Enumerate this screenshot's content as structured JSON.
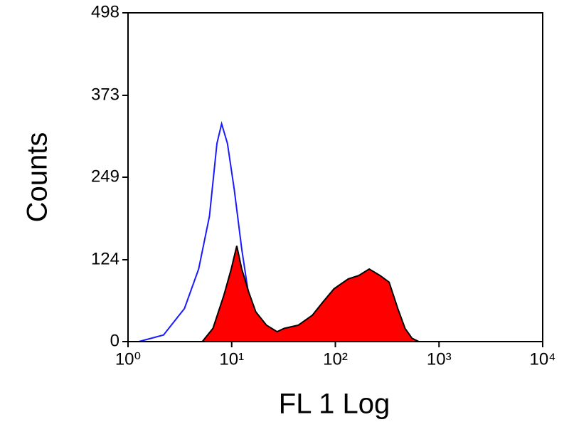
{
  "chart_data": {
    "type": "histogram-overlay",
    "xlabel": "FL 1 Log",
    "ylabel": "Counts",
    "xscale": "log",
    "xlim": [
      1,
      10000
    ],
    "ylim": [
      0,
      498
    ],
    "xticks": [
      {
        "value": 1,
        "label": "10⁰"
      },
      {
        "value": 10,
        "label": "10¹"
      },
      {
        "value": 100,
        "label": "10²"
      },
      {
        "value": 1000,
        "label": "10³"
      },
      {
        "value": 10000,
        "label": "10⁴"
      }
    ],
    "yticks": [
      0,
      124,
      249,
      373,
      498
    ],
    "series": [
      {
        "color": "#1a1aff",
        "x": [
          1.27,
          2.2,
          3.5,
          4.8,
          6.1,
          7.2,
          8.0,
          9.1,
          10.6,
          12.5,
          14.6,
          17,
          21.6,
          25
        ],
        "values": [
          0,
          10,
          50,
          110,
          190,
          300,
          330,
          300,
          230,
          140,
          70,
          25,
          5,
          0
        ]
      },
      {
        "color": "#000000",
        "fill": "#ff0000",
        "x": [
          5.2,
          6.6,
          8.4,
          9.9,
          11.2,
          12.5,
          14.6,
          17.1,
          21.6,
          27.4,
          32,
          44,
          60,
          76,
          97,
          133,
          168,
          212,
          270,
          330,
          400,
          470,
          550,
          640
        ],
        "values": [
          0,
          20,
          70,
          110,
          145,
          110,
          75,
          45,
          25,
          15,
          20,
          25,
          40,
          60,
          80,
          95,
          100,
          110,
          100,
          90,
          50,
          20,
          5,
          0
        ]
      }
    ]
  }
}
